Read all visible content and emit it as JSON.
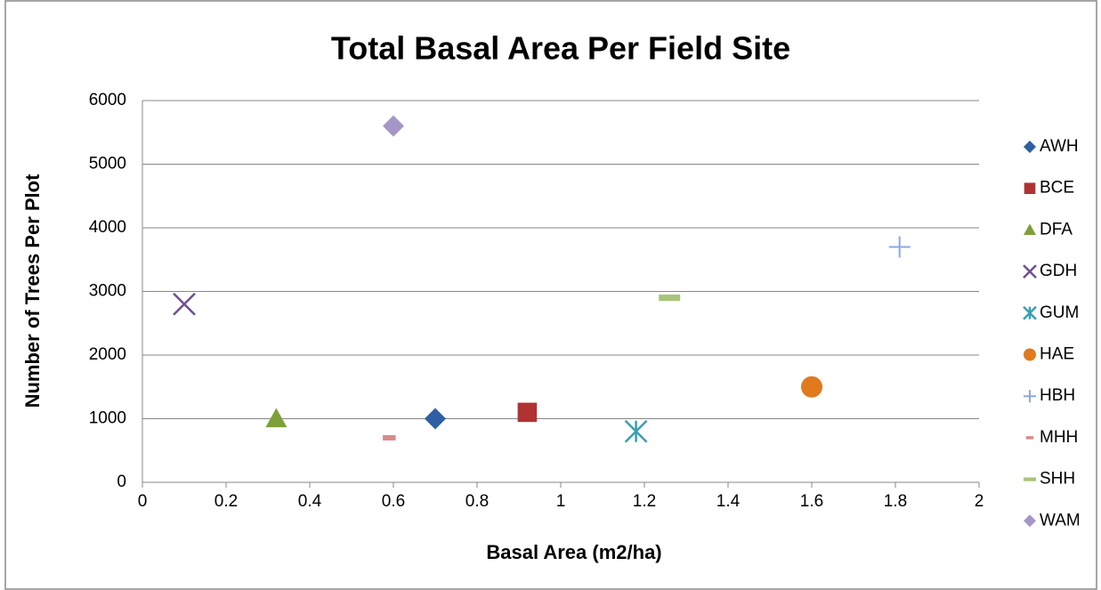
{
  "chart_data": {
    "type": "scatter",
    "title": "Total Basal Area Per Field Site",
    "x_label": "Basal Area (m2/ha)",
    "y_label": "Number of Trees Per Plot",
    "xlim": [
      0,
      2
    ],
    "xticks": [
      0,
      0.2,
      0.4,
      0.6,
      0.8,
      1,
      1.2,
      1.4,
      1.6,
      1.8,
      2
    ],
    "ylim": [
      0,
      6000
    ],
    "yticks": [
      0,
      1000,
      2000,
      3000,
      4000,
      5000,
      6000
    ],
    "grid": true,
    "legend": "right",
    "series": [
      {
        "name": "AWH",
        "color": "#2e5fa3",
        "marker": "diamond",
        "x": [
          0.7
        ],
        "values": [
          1000
        ]
      },
      {
        "name": "BCE",
        "color": "#b03232",
        "marker": "square",
        "x": [
          0.92
        ],
        "values": [
          1100
        ]
      },
      {
        "name": "DFA",
        "color": "#7ea03a",
        "marker": "triangle",
        "x": [
          0.32
        ],
        "values": [
          1000
        ]
      },
      {
        "name": "GDH",
        "color": "#6f4f8f",
        "marker": "x",
        "x": [
          0.1
        ],
        "values": [
          2800
        ]
      },
      {
        "name": "GUM",
        "color": "#3a9fb5",
        "marker": "star",
        "x": [
          1.18
        ],
        "values": [
          800
        ]
      },
      {
        "name": "HAE",
        "color": "#e07a1f",
        "marker": "circle",
        "x": [
          1.6
        ],
        "values": [
          1500
        ]
      },
      {
        "name": "HBH",
        "color": "#8fa8d8",
        "marker": "plus",
        "x": [
          1.81
        ],
        "values": [
          3700
        ]
      },
      {
        "name": "MHH",
        "color": "#d88a8a",
        "marker": "short-dash",
        "x": [
          0.59
        ],
        "values": [
          700
        ]
      },
      {
        "name": "SHH",
        "color": "#a8c47a",
        "marker": "dash",
        "x": [
          1.26
        ],
        "values": [
          2900
        ]
      },
      {
        "name": "WAM",
        "color": "#a696c8",
        "marker": "diamond",
        "x": [
          0.6
        ],
        "values": [
          5600
        ]
      }
    ]
  }
}
